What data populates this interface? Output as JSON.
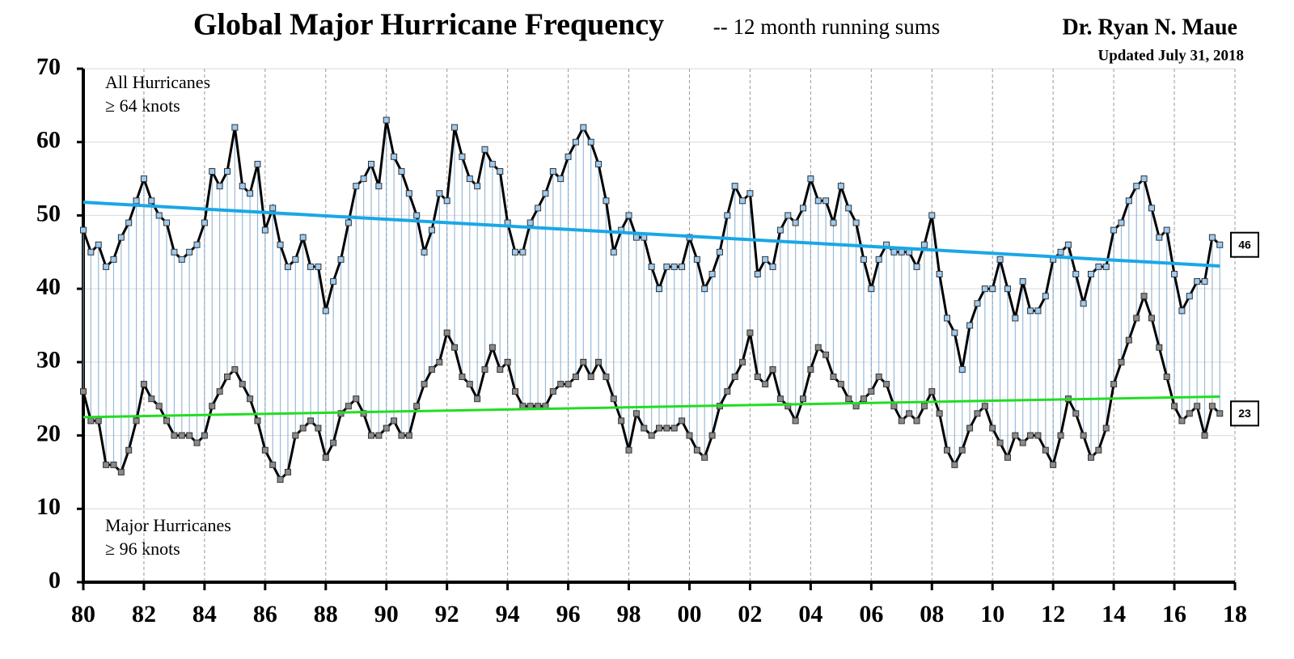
{
  "chart_data": {
    "type": "line",
    "title": "Global Major Hurricane Frequency",
    "subtitle": "-- 12 month running sums",
    "author": "Dr. Ryan N. Maue",
    "updated": "Updated July 31, 2018",
    "grid": true,
    "xlim": [
      1980,
      2018
    ],
    "ylim": [
      0,
      70
    ],
    "yticks": [
      0,
      10,
      20,
      30,
      40,
      50,
      60,
      70
    ],
    "xticks": [
      {
        "value": 1980,
        "label": "80"
      },
      {
        "value": 1982,
        "label": "82"
      },
      {
        "value": 1984,
        "label": "84"
      },
      {
        "value": 1986,
        "label": "86"
      },
      {
        "value": 1988,
        "label": "88"
      },
      {
        "value": 1990,
        "label": "90"
      },
      {
        "value": 1992,
        "label": "92"
      },
      {
        "value": 1994,
        "label": "94"
      },
      {
        "value": 1996,
        "label": "96"
      },
      {
        "value": 1998,
        "label": "98"
      },
      {
        "value": 2000,
        "label": "00"
      },
      {
        "value": 2002,
        "label": "02"
      },
      {
        "value": 2004,
        "label": "04"
      },
      {
        "value": 2006,
        "label": "06"
      },
      {
        "value": 2008,
        "label": "08"
      },
      {
        "value": 2010,
        "label": "10"
      },
      {
        "value": 2012,
        "label": "12"
      },
      {
        "value": 2014,
        "label": "14"
      },
      {
        "value": 2016,
        "label": "16"
      },
      {
        "value": 2018,
        "label": "18"
      }
    ],
    "x": [
      1980,
      1980.25,
      1980.5,
      1980.75,
      1981,
      1981.25,
      1981.5,
      1981.75,
      1982,
      1982.25,
      1982.5,
      1982.75,
      1983,
      1983.25,
      1983.5,
      1983.75,
      1984,
      1984.25,
      1984.5,
      1984.75,
      1985,
      1985.25,
      1985.5,
      1985.75,
      1986,
      1986.25,
      1986.5,
      1986.75,
      1987,
      1987.25,
      1987.5,
      1987.75,
      1988,
      1988.25,
      1988.5,
      1988.75,
      1989,
      1989.25,
      1989.5,
      1989.75,
      1990,
      1990.25,
      1990.5,
      1990.75,
      1991,
      1991.25,
      1991.5,
      1991.75,
      1992,
      1992.25,
      1992.5,
      1992.75,
      1993,
      1993.25,
      1993.5,
      1993.75,
      1994,
      1994.25,
      1994.5,
      1994.75,
      1995,
      1995.25,
      1995.5,
      1995.75,
      1996,
      1996.25,
      1996.5,
      1996.75,
      1997,
      1997.25,
      1997.5,
      1997.75,
      1998,
      1998.25,
      1998.5,
      1998.75,
      1999,
      1999.25,
      1999.5,
      1999.75,
      2000,
      2000.25,
      2000.5,
      2000.75,
      2001,
      2001.25,
      2001.5,
      2001.75,
      2002,
      2002.25,
      2002.5,
      2002.75,
      2003,
      2003.25,
      2003.5,
      2003.75,
      2004,
      2004.25,
      2004.5,
      2004.75,
      2005,
      2005.25,
      2005.5,
      2005.75,
      2006,
      2006.25,
      2006.5,
      2006.75,
      2007,
      2007.25,
      2007.5,
      2007.75,
      2008,
      2008.25,
      2008.5,
      2008.75,
      2009,
      2009.25,
      2009.5,
      2009.75,
      2010,
      2010.25,
      2010.5,
      2010.75,
      2011,
      2011.25,
      2011.5,
      2011.75,
      2012,
      2012.25,
      2012.5,
      2012.75,
      2013,
      2013.25,
      2013.5,
      2013.75,
      2014,
      2014.25,
      2014.5,
      2014.75,
      2015,
      2015.25,
      2015.5,
      2015.75,
      2016,
      2016.25,
      2016.5,
      2016.75,
      2017,
      2017.25,
      2017.5
    ],
    "series": [
      {
        "name": "All Hurricanes",
        "threshold": "≥ 64 knots",
        "color": "#9ecbf0",
        "values": [
          48,
          45,
          46,
          43,
          44,
          47,
          49,
          52,
          55,
          52,
          50,
          49,
          45,
          44,
          45,
          46,
          49,
          56,
          54,
          56,
          62,
          54,
          53,
          57,
          48,
          51,
          46,
          43,
          44,
          47,
          43,
          43,
          37,
          41,
          44,
          49,
          54,
          55,
          57,
          54,
          63,
          58,
          56,
          53,
          50,
          45,
          48,
          53,
          52,
          62,
          58,
          55,
          54,
          59,
          57,
          56,
          49,
          45,
          45,
          49,
          51,
          53,
          56,
          55,
          58,
          60,
          62,
          60,
          57,
          52,
          45,
          48,
          50,
          47,
          47,
          43,
          40,
          43,
          43,
          43,
          47,
          44,
          40,
          42,
          45,
          50,
          54,
          52,
          53,
          42,
          44,
          43,
          48,
          50,
          49,
          51,
          55,
          52,
          52,
          49,
          54,
          51,
          49,
          44,
          40,
          44,
          46,
          45,
          45,
          45,
          43,
          46,
          50,
          42,
          36,
          34,
          29,
          35,
          38,
          40,
          40,
          44,
          40,
          36,
          41,
          37,
          37,
          39,
          44,
          45,
          46,
          42,
          38,
          42,
          43,
          43,
          48,
          49,
          52,
          54,
          55,
          51,
          47,
          48,
          42,
          37,
          39,
          41,
          41,
          47,
          46
        ]
      },
      {
        "name": "Major Hurricanes",
        "threshold": "≥ 96 knots",
        "color": "#8a8a8a",
        "values": [
          26,
          22,
          22,
          16,
          16,
          15,
          18,
          22,
          27,
          25,
          24,
          22,
          20,
          20,
          20,
          19,
          20,
          24,
          26,
          28,
          29,
          27,
          25,
          22,
          18,
          16,
          14,
          15,
          20,
          21,
          22,
          21,
          17,
          19,
          23,
          24,
          25,
          23,
          20,
          20,
          21,
          22,
          20,
          20,
          24,
          27,
          29,
          30,
          34,
          32,
          28,
          27,
          25,
          29,
          32,
          29,
          30,
          26,
          24,
          24,
          24,
          24,
          26,
          27,
          27,
          28,
          30,
          28,
          30,
          28,
          25,
          22,
          18,
          23,
          21,
          20,
          21,
          21,
          21,
          22,
          20,
          18,
          17,
          20,
          24,
          26,
          28,
          30,
          34,
          28,
          27,
          29,
          25,
          24,
          22,
          25,
          29,
          32,
          31,
          28,
          27,
          25,
          24,
          25,
          26,
          28,
          27,
          24,
          22,
          23,
          22,
          24,
          26,
          23,
          18,
          16,
          18,
          21,
          23,
          24,
          21,
          19,
          17,
          20,
          19,
          20,
          20,
          18,
          16,
          20,
          25,
          23,
          20,
          17,
          18,
          21,
          27,
          30,
          33,
          36,
          39,
          36,
          32,
          28,
          24,
          22,
          23,
          24,
          20,
          24,
          23
        ]
      }
    ],
    "trends": [
      {
        "color": "#1aa7e6",
        "x": [
          1980,
          2017.5
        ],
        "values": [
          51.8,
          43.1
        ]
      },
      {
        "color": "#22dd22",
        "x": [
          1980,
          2017.5
        ],
        "values": [
          22.5,
          25.3
        ]
      }
    ]
  }
}
